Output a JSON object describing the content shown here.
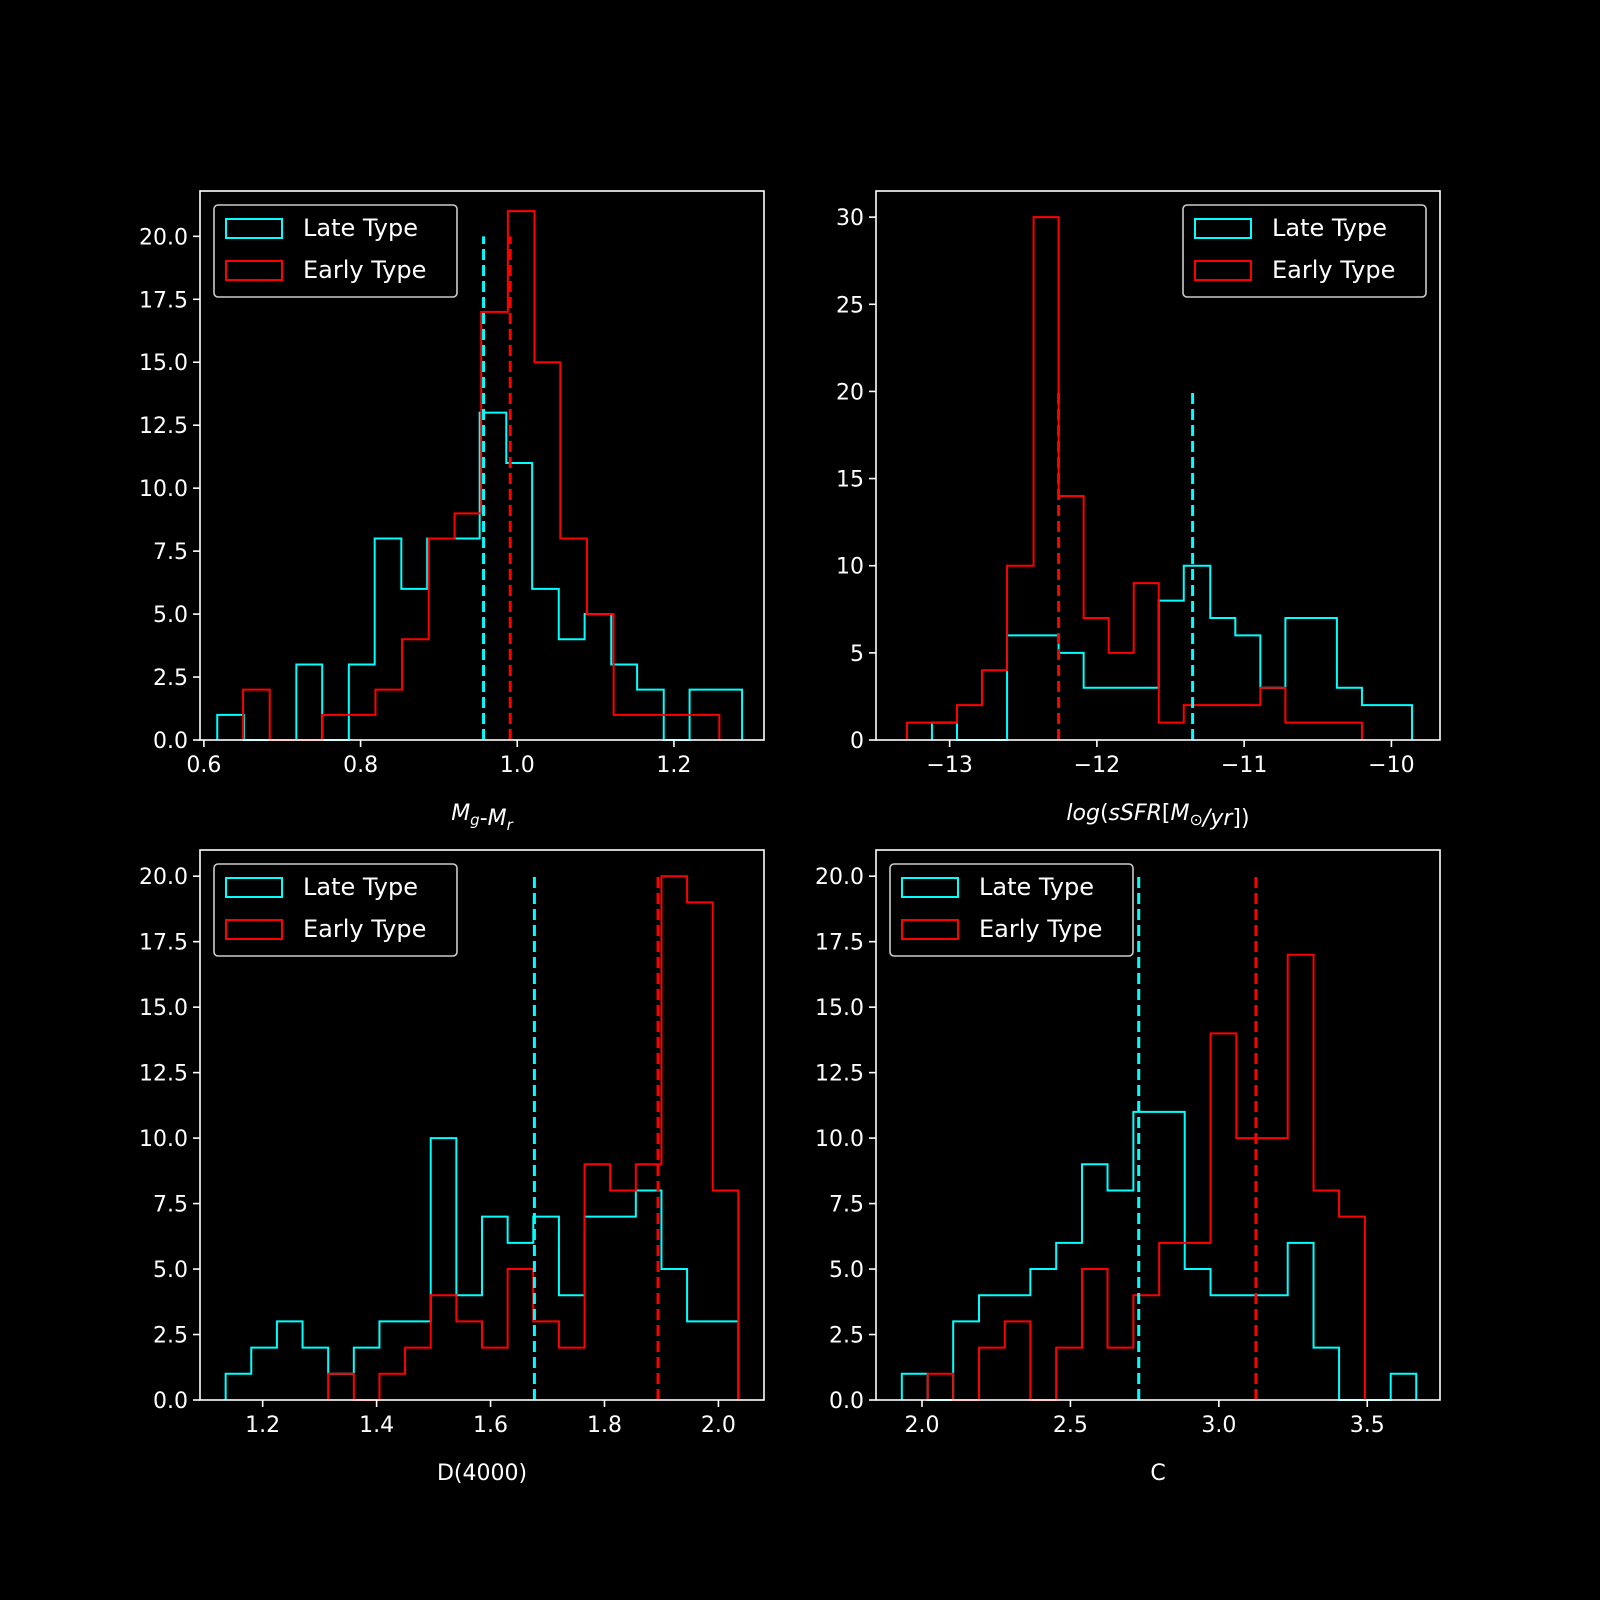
{
  "figure": {
    "background": "#000000",
    "foreground": "#ffffff"
  },
  "chart_data": [
    {
      "id": "color",
      "type": "histogram",
      "xlabel": "M_g-M_r",
      "xlim": [
        0.595,
        1.315
      ],
      "ylim": [
        0,
        21.8
      ],
      "xticks": [
        0.6,
        0.8,
        1.0,
        1.2
      ],
      "xtick_labels": [
        "0.6",
        "0.8",
        "1.0",
        "1.2"
      ],
      "yticks": [
        0,
        2.5,
        5,
        7.5,
        10,
        12.5,
        15,
        17.5,
        20
      ],
      "ytick_labels": [
        "0.0",
        "2.5",
        "5.0",
        "7.5",
        "10.0",
        "12.5",
        "15.0",
        "17.5",
        "20.0"
      ],
      "legend": {
        "position": "upper-left",
        "entries": [
          "Late Type",
          "Early Type"
        ]
      },
      "series": [
        {
          "name": "Late Type",
          "color": "#00ffff",
          "edges": [
            0.617,
            0.651,
            0.684,
            0.718,
            0.751,
            0.785,
            0.818,
            0.852,
            0.885,
            0.919,
            0.952,
            0.986,
            1.019,
            1.053,
            1.086,
            1.12,
            1.153,
            1.187,
            1.22,
            1.254,
            1.287
          ],
          "counts": [
            1,
            0,
            0,
            3,
            0,
            3,
            8,
            6,
            8,
            8,
            13,
            11,
            6,
            4,
            5,
            3,
            2,
            0,
            2,
            2
          ],
          "mean": 0.957,
          "mean_line_top": 20
        },
        {
          "name": "Early Type",
          "color": "#ff0000",
          "edges": [
            0.65,
            0.684,
            0.718,
            0.751,
            0.785,
            0.819,
            0.853,
            0.887,
            0.92,
            0.954,
            0.988,
            1.022,
            1.055,
            1.089,
            1.123,
            1.157,
            1.19,
            1.224,
            1.258
          ],
          "counts": [
            2,
            0,
            0,
            1,
            1,
            2,
            4,
            8,
            9,
            17,
            21,
            15,
            8,
            5,
            1,
            1,
            1,
            1
          ],
          "mean": 0.991,
          "mean_line_top": 20
        }
      ]
    },
    {
      "id": "ssfr",
      "type": "histogram",
      "xlabel": "log(sSFR[M_⊙/yr])",
      "xlim": [
        -13.5,
        -9.67
      ],
      "ylim": [
        0,
        31.5
      ],
      "xticks": [
        -13,
        -12,
        -11,
        -10
      ],
      "xtick_labels": [
        "−13",
        "−12",
        "−11",
        "−10"
      ],
      "yticks": [
        0,
        5,
        10,
        15,
        20,
        25,
        30
      ],
      "ytick_labels": [
        "0",
        "5",
        "10",
        "15",
        "20",
        "25",
        "30"
      ],
      "legend": {
        "position": "upper-right",
        "entries": [
          "Late Type",
          "Early Type"
        ]
      },
      "series": [
        {
          "name": "Late Type",
          "color": "#00ffff",
          "edges": [
            -13.12,
            -12.95,
            -12.78,
            -12.61,
            -12.43,
            -12.26,
            -12.09,
            -11.92,
            -11.75,
            -11.58,
            -11.41,
            -11.23,
            -11.06,
            -10.89,
            -10.72,
            -10.55,
            -10.37,
            -10.2,
            -10.03,
            -9.86
          ],
          "counts": [
            1,
            0,
            0,
            6,
            6,
            5,
            3,
            3,
            3,
            8,
            10,
            7,
            6,
            3,
            7,
            7,
            3,
            2,
            2
          ],
          "mean": -11.35,
          "mean_line_top": 20
        },
        {
          "name": "Early Type",
          "color": "#ff0000",
          "edges": [
            -13.29,
            -13.12,
            -12.95,
            -12.78,
            -12.61,
            -12.43,
            -12.26,
            -12.09,
            -11.92,
            -11.75,
            -11.58,
            -11.41,
            -11.23,
            -11.06,
            -10.89,
            -10.72,
            -10.55,
            -10.37,
            -10.2
          ],
          "counts": [
            1,
            1,
            2,
            4,
            10,
            30,
            14,
            7,
            5,
            9,
            1,
            2,
            2,
            2,
            3,
            1,
            1,
            1
          ],
          "mean": -12.26,
          "mean_line_top": 20
        }
      ]
    },
    {
      "id": "d4000",
      "type": "histogram",
      "xlabel": "D(4000)",
      "xlim": [
        1.09,
        2.08
      ],
      "ylim": [
        0,
        21
      ],
      "xticks": [
        1.2,
        1.4,
        1.6,
        1.8,
        2.0
      ],
      "xtick_labels": [
        "1.2",
        "1.4",
        "1.6",
        "1.8",
        "2.0"
      ],
      "yticks": [
        0,
        2.5,
        5,
        7.5,
        10,
        12.5,
        15,
        17.5,
        20
      ],
      "ytick_labels": [
        "0.0",
        "2.5",
        "5.0",
        "7.5",
        "10.0",
        "12.5",
        "15.0",
        "17.5",
        "20.0"
      ],
      "legend": {
        "position": "upper-left",
        "entries": [
          "Late Type",
          "Early Type"
        ]
      },
      "series": [
        {
          "name": "Late Type",
          "color": "#00ffff",
          "edges": [
            1.135,
            1.18,
            1.225,
            1.27,
            1.315,
            1.36,
            1.405,
            1.45,
            1.495,
            1.54,
            1.585,
            1.63,
            1.675,
            1.72,
            1.765,
            1.81,
            1.855,
            1.9,
            1.945,
            1.99,
            2.035
          ],
          "counts": [
            1,
            2,
            3,
            2,
            1,
            2,
            3,
            3,
            10,
            4,
            7,
            6,
            7,
            4,
            7,
            7,
            8,
            5,
            3,
            3
          ],
          "mean": 1.677,
          "mean_line_top": 20
        },
        {
          "name": "Early Type",
          "color": "#ff0000",
          "edges": [
            1.315,
            1.36,
            1.405,
            1.45,
            1.495,
            1.54,
            1.585,
            1.63,
            1.675,
            1.72,
            1.765,
            1.81,
            1.855,
            1.9,
            1.945,
            1.99,
            2.035
          ],
          "counts": [
            1,
            0,
            1,
            2,
            4,
            3,
            2,
            5,
            3,
            2,
            9,
            8,
            9,
            20,
            19,
            8
          ],
          "mean": 1.894,
          "mean_line_top": 20
        }
      ]
    },
    {
      "id": "concentration",
      "type": "histogram",
      "xlabel": "C",
      "xlim": [
        1.845,
        3.745
      ],
      "ylim": [
        0,
        21
      ],
      "xticks": [
        2.0,
        2.5,
        3.0,
        3.5
      ],
      "xtick_labels": [
        "2.0",
        "2.5",
        "3.0",
        "3.5"
      ],
      "yticks": [
        0,
        2.5,
        5,
        7.5,
        10,
        12.5,
        15,
        17.5,
        20
      ],
      "ytick_labels": [
        "0.0",
        "2.5",
        "5.0",
        "7.5",
        "10.0",
        "12.5",
        "15.0",
        "17.5",
        "20.0"
      ],
      "legend": {
        "position": "upper-left",
        "entries": [
          "Late Type",
          "Early Type"
        ]
      },
      "series": [
        {
          "name": "Late Type",
          "color": "#00ffff",
          "edges": [
            1.932,
            2.019,
            2.105,
            2.192,
            2.279,
            2.365,
            2.452,
            2.539,
            2.625,
            2.712,
            2.799,
            2.885,
            2.972,
            3.059,
            3.145,
            3.232,
            3.319,
            3.405,
            3.492,
            3.579,
            3.665
          ],
          "counts": [
            1,
            0,
            3,
            4,
            4,
            5,
            6,
            9,
            8,
            11,
            11,
            5,
            4,
            4,
            4,
            6,
            2,
            0,
            0,
            1
          ],
          "mean": 2.73,
          "mean_line_top": 20
        },
        {
          "name": "Early Type",
          "color": "#ff0000",
          "edges": [
            2.019,
            2.105,
            2.192,
            2.279,
            2.365,
            2.452,
            2.539,
            2.625,
            2.712,
            2.799,
            2.885,
            2.972,
            3.059,
            3.145,
            3.232,
            3.319,
            3.405,
            3.492
          ],
          "counts": [
            1,
            0,
            2,
            3,
            0,
            2,
            5,
            2,
            4,
            6,
            6,
            14,
            10,
            10,
            17,
            8,
            7
          ],
          "mean": 3.125,
          "mean_line_top": 20
        }
      ]
    }
  ]
}
